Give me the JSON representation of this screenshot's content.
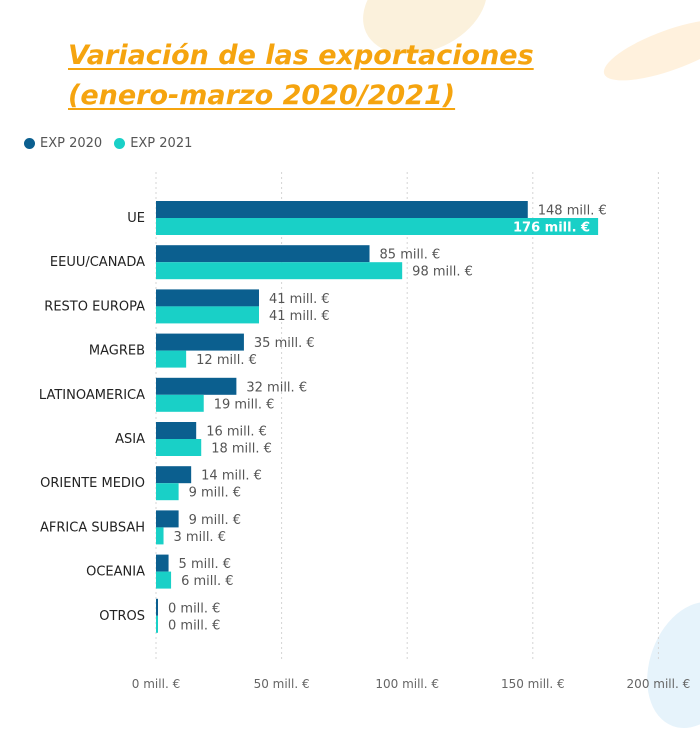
{
  "title_line1": "Variación de las exportaciones",
  "title_line2": "(enero-marzo 2020/2021)",
  "colors": {
    "exp2020": "#0b5f8f",
    "exp2021": "#19d0c7",
    "title": "#f5a40f"
  },
  "chart_data": {
    "type": "bar",
    "orientation": "horizontal",
    "categories": [
      "UE",
      "EEUU/CANADA",
      "RESTO EUROPA",
      "MAGREB",
      "LATINOAMERICA",
      "ASIA",
      "ORIENTE MEDIO",
      "AFRICA SUBSAH",
      "OCEANIA",
      "OTROS"
    ],
    "series": [
      {
        "name": "EXP 2020",
        "values": [
          148,
          85,
          41,
          35,
          32,
          16,
          14,
          9,
          5,
          0
        ],
        "labels": [
          "148 mill. €",
          "85 mill. €",
          "41 mill. €",
          "35 mill. €",
          "32 mill. €",
          "16 mill. €",
          "14 mill. €",
          "9 mill. €",
          "5 mill. €",
          "0 mill. €"
        ]
      },
      {
        "name": "EXP 2021",
        "values": [
          176,
          98,
          41,
          12,
          19,
          18,
          9,
          3,
          6,
          0
        ],
        "labels": [
          "176 mill. €",
          "98 mill. €",
          "41 mill. €",
          "12 mill. €",
          "19 mill. €",
          "18 mill. €",
          "9 mill. €",
          "3 mill. €",
          "6 mill. €",
          "0 mill. €"
        ]
      }
    ],
    "xlim": [
      0,
      200
    ],
    "xticks": [
      0,
      50,
      100,
      150,
      200
    ],
    "xtick_labels": [
      "0 mill. €",
      "50 mill. €",
      "100 mill. €",
      "150 mill. €",
      "200 mill. €"
    ],
    "grid": true,
    "legend_position": "top-left"
  }
}
